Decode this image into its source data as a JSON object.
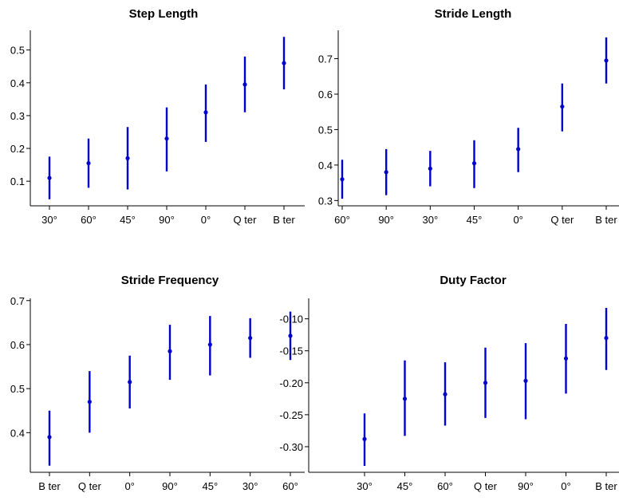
{
  "colors": {
    "marker": "#0000cc",
    "axis": "#000000",
    "background": "#ffffff"
  },
  "chart_data": [
    {
      "type": "scatter",
      "error_bars": true,
      "title": "Step Length",
      "xlabel": "",
      "ylabel": "",
      "categories": [
        "30°",
        "60°",
        "45°",
        "90°",
        "0°",
        "Q ter",
        "B ter"
      ],
      "values": [
        0.11,
        0.155,
        0.17,
        0.23,
        0.31,
        0.395,
        0.46
      ],
      "lower": [
        0.045,
        0.08,
        0.075,
        0.13,
        0.22,
        0.31,
        0.38
      ],
      "upper": [
        0.175,
        0.23,
        0.265,
        0.325,
        0.395,
        0.48,
        0.54
      ],
      "yticks": [
        "0.1",
        "0.2",
        "0.3",
        "0.4",
        "0.5"
      ],
      "ytick_values": [
        0.1,
        0.2,
        0.3,
        0.4,
        0.5
      ],
      "ylim": [
        0.025,
        0.56
      ],
      "grid": false
    },
    {
      "type": "scatter",
      "error_bars": true,
      "title": "Stride Length",
      "xlabel": "",
      "ylabel": "",
      "categories": [
        "60°",
        "90°",
        "30°",
        "45°",
        "0°",
        "Q ter",
        "B ter"
      ],
      "values": [
        0.36,
        0.38,
        0.39,
        0.405,
        0.445,
        0.565,
        0.695
      ],
      "lower": [
        0.305,
        0.315,
        0.34,
        0.335,
        0.38,
        0.495,
        0.63
      ],
      "upper": [
        0.415,
        0.445,
        0.44,
        0.47,
        0.505,
        0.63,
        0.76
      ],
      "yticks": [
        "0.3",
        "0.4",
        "0.5",
        "0.6",
        "0.7"
      ],
      "ytick_values": [
        0.3,
        0.4,
        0.5,
        0.6,
        0.7
      ],
      "ylim": [
        0.285,
        0.78
      ],
      "grid": false
    },
    {
      "type": "scatter",
      "error_bars": true,
      "title": "Stride Frequency",
      "xlabel": "",
      "ylabel": "",
      "categories": [
        "B ter",
        "Q ter",
        "0°",
        "90°",
        "45°",
        "30°",
        "60°"
      ],
      "values": [
        0.39,
        0.47,
        0.515,
        0.585,
        0.6,
        0.615,
        0.62
      ],
      "lower": [
        0.325,
        0.4,
        0.455,
        0.52,
        0.53,
        0.57,
        0.565
      ],
      "upper": [
        0.45,
        0.54,
        0.575,
        0.645,
        0.665,
        0.66,
        0.675
      ],
      "yticks": [
        "0.4",
        "0.5",
        "0.6",
        "0.7"
      ],
      "ytick_values": [
        0.4,
        0.5,
        0.6,
        0.7
      ],
      "ylim": [
        0.31,
        0.705
      ],
      "grid": false
    },
    {
      "type": "scatter",
      "error_bars": true,
      "title": "Duty Factor",
      "xlabel": "",
      "ylabel": "",
      "categories": [
        "30°",
        "45°",
        "60°",
        "Q ter",
        "90°",
        "0°",
        "B ter"
      ],
      "values": [
        -0.288,
        -0.225,
        -0.218,
        -0.2,
        -0.197,
        -0.162,
        -0.13
      ],
      "lower": [
        -0.33,
        -0.283,
        -0.267,
        -0.255,
        -0.257,
        -0.217,
        -0.18
      ],
      "upper": [
        -0.248,
        -0.165,
        -0.168,
        -0.145,
        -0.138,
        -0.108,
        -0.083
      ],
      "yticks": [
        "-0.30",
        "-0.25",
        "-0.20",
        "-0.15",
        "-0.10"
      ],
      "ytick_values": [
        -0.3,
        -0.25,
        -0.2,
        -0.15,
        -0.1
      ],
      "ylim": [
        -0.34,
        -0.068
      ],
      "grid": false
    }
  ]
}
